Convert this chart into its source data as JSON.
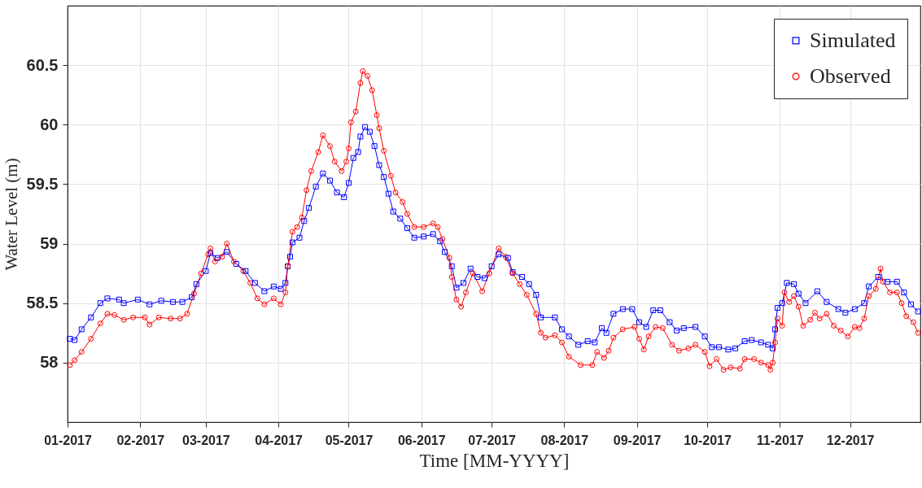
{
  "chart_data": {
    "type": "line",
    "xlabel": "Time [MM-YYYY]",
    "ylabel": "Water Level (m)",
    "xlim": [
      "2017-01-01",
      "2017-12-31"
    ],
    "xticks": [
      {
        "value": "2017-01-01",
        "label": "01-2017"
      },
      {
        "value": "2017-02-01",
        "label": "02-2017"
      },
      {
        "value": "2017-03-01",
        "label": "03-2017"
      },
      {
        "value": "2017-04-01",
        "label": "04-2017"
      },
      {
        "value": "2017-05-01",
        "label": "05-2017"
      },
      {
        "value": "2017-06-01",
        "label": "06-2017"
      },
      {
        "value": "2017-07-01",
        "label": "07-2017"
      },
      {
        "value": "2017-08-01",
        "label": "08-2017"
      },
      {
        "value": "2017-09-01",
        "label": "09-2017"
      },
      {
        "value": "2017-10-01",
        "label": "10-2017"
      },
      {
        "value": "2017-11-01",
        "label": "11-2017"
      },
      {
        "value": "2017-12-01",
        "label": "12-2017"
      }
    ],
    "ylim": [
      57.5,
      61
    ],
    "yticks": [
      58,
      58.5,
      59,
      59.5,
      60,
      60.5
    ],
    "grid": true,
    "legend": "top right",
    "line_style": "solid",
    "series": [
      {
        "name": "Simulated",
        "color": "#0000ff",
        "marker": "square",
        "x": [
          "2017-01-02",
          "2017-01-04",
          "2017-01-07",
          "2017-01-11",
          "2017-01-15",
          "2017-01-18",
          "2017-01-23",
          "2017-01-25",
          "2017-01-31",
          "2017-02-05",
          "2017-02-10",
          "2017-02-15",
          "2017-02-19",
          "2017-02-23",
          "2017-02-25",
          "2017-03-01",
          "2017-03-03",
          "2017-03-06",
          "2017-03-10",
          "2017-03-14",
          "2017-03-18",
          "2017-03-22",
          "2017-03-26",
          "2017-03-30",
          "2017-04-02",
          "2017-04-04",
          "2017-04-05",
          "2017-04-06",
          "2017-04-07",
          "2017-04-10",
          "2017-04-12",
          "2017-04-14",
          "2017-04-17",
          "2017-04-20",
          "2017-04-23",
          "2017-04-26",
          "2017-04-29",
          "2017-05-01",
          "2017-05-03",
          "2017-05-05",
          "2017-05-06",
          "2017-05-08",
          "2017-05-10",
          "2017-05-12",
          "2017-05-14",
          "2017-05-16",
          "2017-05-18",
          "2017-05-20",
          "2017-05-23",
          "2017-05-26",
          "2017-05-29",
          "2017-06-02",
          "2017-06-06",
          "2017-06-09",
          "2017-06-11",
          "2017-06-14",
          "2017-06-16",
          "2017-06-19",
          "2017-06-22",
          "2017-06-25",
          "2017-06-28",
          "2017-07-01",
          "2017-07-04",
          "2017-07-08",
          "2017-07-10",
          "2017-07-14",
          "2017-07-17",
          "2017-07-20",
          "2017-07-22",
          "2017-07-28",
          "2017-07-31",
          "2017-08-03",
          "2017-08-07",
          "2017-08-11",
          "2017-08-14",
          "2017-08-17",
          "2017-08-19",
          "2017-08-22",
          "2017-08-26",
          "2017-08-30",
          "2017-09-02",
          "2017-09-05",
          "2017-09-08",
          "2017-09-11",
          "2017-09-15",
          "2017-09-18",
          "2017-09-21",
          "2017-09-26",
          "2017-09-30",
          "2017-10-03",
          "2017-10-06",
          "2017-10-10",
          "2017-10-13",
          "2017-10-17",
          "2017-10-20",
          "2017-10-24",
          "2017-10-27",
          "2017-10-29",
          "2017-10-30",
          "2017-10-31",
          "2017-11-02",
          "2017-11-04",
          "2017-11-07",
          "2017-11-09",
          "2017-11-12",
          "2017-11-17",
          "2017-11-21",
          "2017-11-26",
          "2017-11-29",
          "2017-12-03",
          "2017-12-07",
          "2017-12-09",
          "2017-12-13",
          "2017-12-17",
          "2017-12-21",
          "2017-12-24",
          "2017-12-27",
          "2017-12-30"
        ],
        "values": [
          58.2,
          58.19,
          58.28,
          58.38,
          58.5,
          58.54,
          58.53,
          58.5,
          58.53,
          58.49,
          58.52,
          58.51,
          58.51,
          58.55,
          58.66,
          58.77,
          58.92,
          58.88,
          58.93,
          58.83,
          58.77,
          58.67,
          58.6,
          58.64,
          58.62,
          58.67,
          58.81,
          58.89,
          59.01,
          59.05,
          59.19,
          59.3,
          59.48,
          59.59,
          59.53,
          59.43,
          59.39,
          59.51,
          59.72,
          59.77,
          59.9,
          59.98,
          59.94,
          59.82,
          59.66,
          59.56,
          59.42,
          59.27,
          59.21,
          59.13,
          59.05,
          59.06,
          59.08,
          59.02,
          58.93,
          58.81,
          58.63,
          58.67,
          58.79,
          58.72,
          58.71,
          58.81,
          58.91,
          58.88,
          58.76,
          58.72,
          58.66,
          58.57,
          58.38,
          58.38,
          58.28,
          58.22,
          58.15,
          58.18,
          58.17,
          58.29,
          58.25,
          58.41,
          58.45,
          58.45,
          58.34,
          58.3,
          58.44,
          58.44,
          58.34,
          58.27,
          58.29,
          58.3,
          58.22,
          58.13,
          58.13,
          58.11,
          58.12,
          58.18,
          58.19,
          58.17,
          58.15,
          58.12,
          58.28,
          58.46,
          58.5,
          58.67,
          58.66,
          58.58,
          58.5,
          58.6,
          58.51,
          58.45,
          58.42,
          58.45,
          58.5,
          58.64,
          58.72,
          58.68,
          58.68,
          58.59,
          58.49,
          58.43
        ]
      },
      {
        "name": "Observed",
        "color": "#ff0000",
        "marker": "circle",
        "x": [
          "2017-01-02",
          "2017-01-04",
          "2017-01-07",
          "2017-01-11",
          "2017-01-15",
          "2017-01-18",
          "2017-01-21",
          "2017-01-25",
          "2017-01-29",
          "2017-02-03",
          "2017-02-05",
          "2017-02-09",
          "2017-02-14",
          "2017-02-18",
          "2017-02-21",
          "2017-02-24",
          "2017-02-27",
          "2017-03-02",
          "2017-03-03",
          "2017-03-05",
          "2017-03-08",
          "2017-03-10",
          "2017-03-13",
          "2017-03-17",
          "2017-03-20",
          "2017-03-23",
          "2017-03-26",
          "2017-03-30",
          "2017-04-02",
          "2017-04-04",
          "2017-04-05",
          "2017-04-07",
          "2017-04-09",
          "2017-04-11",
          "2017-04-13",
          "2017-04-15",
          "2017-04-18",
          "2017-04-20",
          "2017-04-23",
          "2017-04-25",
          "2017-04-28",
          "2017-04-30",
          "2017-05-01",
          "2017-05-02",
          "2017-05-04",
          "2017-05-06",
          "2017-05-07",
          "2017-05-09",
          "2017-05-11",
          "2017-05-13",
          "2017-05-14",
          "2017-05-16",
          "2017-05-19",
          "2017-05-21",
          "2017-05-24",
          "2017-05-26",
          "2017-05-29",
          "2017-06-02",
          "2017-06-06",
          "2017-06-08",
          "2017-06-10",
          "2017-06-13",
          "2017-06-14",
          "2017-06-16",
          "2017-06-18",
          "2017-06-20",
          "2017-06-23",
          "2017-06-27",
          "2017-06-30",
          "2017-07-04",
          "2017-07-07",
          "2017-07-10",
          "2017-07-13",
          "2017-07-16",
          "2017-07-20",
          "2017-07-22",
          "2017-07-24",
          "2017-07-28",
          "2017-07-31",
          "2017-08-03",
          "2017-08-08",
          "2017-08-13",
          "2017-08-15",
          "2017-08-18",
          "2017-08-20",
          "2017-08-22",
          "2017-08-26",
          "2017-08-31",
          "2017-09-02",
          "2017-09-04",
          "2017-09-06",
          "2017-09-09",
          "2017-09-12",
          "2017-09-16",
          "2017-09-19",
          "2017-09-23",
          "2017-09-26",
          "2017-09-30",
          "2017-10-02",
          "2017-10-05",
          "2017-10-08",
          "2017-10-11",
          "2017-10-15",
          "2017-10-17",
          "2017-10-21",
          "2017-10-24",
          "2017-10-27",
          "2017-10-28",
          "2017-10-29",
          "2017-10-30",
          "2017-10-31",
          "2017-11-02",
          "2017-11-03",
          "2017-11-05",
          "2017-11-07",
          "2017-11-09",
          "2017-11-11",
          "2017-11-14",
          "2017-11-16",
          "2017-11-18",
          "2017-11-21",
          "2017-11-24",
          "2017-11-27",
          "2017-11-30",
          "2017-12-03",
          "2017-12-05",
          "2017-12-07",
          "2017-12-09",
          "2017-12-12",
          "2017-12-14",
          "2017-12-15",
          "2017-12-18",
          "2017-12-21",
          "2017-12-23",
          "2017-12-25",
          "2017-12-28",
          "2017-12-30"
        ],
        "values": [
          57.98,
          58.02,
          58.09,
          58.2,
          58.33,
          58.41,
          58.4,
          58.36,
          58.38,
          58.38,
          58.32,
          58.38,
          58.37,
          58.37,
          58.41,
          58.58,
          58.75,
          58.91,
          58.96,
          58.85,
          58.89,
          59.0,
          58.85,
          58.77,
          58.67,
          58.54,
          58.49,
          58.54,
          58.49,
          58.59,
          58.81,
          59.1,
          59.14,
          59.22,
          59.45,
          59.61,
          59.77,
          59.91,
          59.82,
          59.69,
          59.61,
          59.69,
          59.8,
          60.02,
          60.11,
          60.35,
          60.45,
          60.41,
          60.29,
          60.08,
          59.97,
          59.78,
          59.57,
          59.43,
          59.35,
          59.25,
          59.14,
          59.14,
          59.17,
          59.14,
          59.04,
          58.88,
          58.72,
          58.53,
          58.47,
          58.59,
          58.75,
          58.6,
          58.75,
          58.96,
          58.89,
          58.75,
          58.66,
          58.57,
          58.41,
          58.25,
          58.21,
          58.23,
          58.17,
          58.05,
          57.98,
          57.98,
          58.09,
          58.04,
          58.1,
          58.21,
          58.28,
          58.3,
          58.2,
          58.11,
          58.22,
          58.3,
          58.29,
          58.15,
          58.1,
          58.12,
          58.15,
          58.09,
          57.97,
          58.03,
          57.94,
          57.96,
          57.95,
          58.03,
          58.03,
          58.0,
          57.98,
          57.94,
          58.0,
          58.17,
          58.37,
          58.31,
          58.59,
          58.51,
          58.56,
          58.47,
          58.31,
          58.36,
          58.42,
          58.37,
          58.41,
          58.31,
          58.27,
          58.22,
          58.3,
          58.29,
          58.37,
          58.56,
          58.62,
          58.79,
          58.68,
          58.59,
          58.59,
          58.5,
          58.39,
          58.34,
          58.25
        ]
      }
    ]
  }
}
